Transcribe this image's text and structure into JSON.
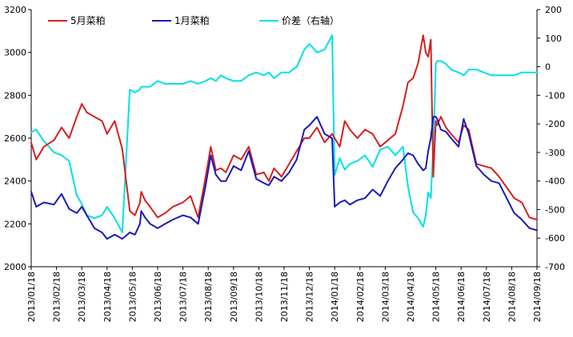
{
  "chart_data": {
    "type": "line",
    "legend": [
      "5月菜粕",
      "1月菜粕",
      "价差（右轴）"
    ],
    "legend_position": "top",
    "x_tick_labels": [
      "2013/01/18",
      "2013/02/18",
      "2013/03/18",
      "2013/04/18",
      "2013/05/18",
      "2013/06/18",
      "2013/07/18",
      "2013/08/18",
      "2013/09/18",
      "2013/10/18",
      "2013/11/18",
      "2013/12/18",
      "2014/01/18",
      "2014/02/18",
      "2014/03/18",
      "2014/04/18",
      "2014/05/18",
      "2014/06/18",
      "2014/07/18",
      "2014/08/18",
      "2014/09/18"
    ],
    "y_left": {
      "range": [
        2000,
        3200
      ],
      "ticks": [
        "2000",
        "2200",
        "2400",
        "2600",
        "2800",
        "3000",
        "3200"
      ]
    },
    "y_right": {
      "range": [
        -700,
        200
      ],
      "ticks": [
        "-700",
        "-600",
        "-500",
        "-400",
        "-300",
        "-200",
        "-100",
        "0",
        "100",
        "200"
      ]
    },
    "series": [
      {
        "name": "5月菜粕",
        "axis": "left",
        "color": "#d42020",
        "x": [
          0,
          0.2,
          0.5,
          0.9,
          1.2,
          1.5,
          1.8,
          2.0,
          2.2,
          2.5,
          2.8,
          3.0,
          3.3,
          3.6,
          3.9,
          4.1,
          4.3,
          4.35,
          4.5,
          4.7,
          5.0,
          5.3,
          5.6,
          6.0,
          6.3,
          6.6,
          6.9,
          7.1,
          7.3,
          7.5,
          7.7,
          8.0,
          8.3,
          8.6,
          8.9,
          9.2,
          9.4,
          9.6,
          9.9,
          10.2,
          10.5,
          10.8,
          11.0,
          11.3,
          11.6,
          11.9,
          12.0,
          12.2,
          12.4,
          12.6,
          12.9,
          13.2,
          13.5,
          13.8,
          14.1,
          14.4,
          14.7,
          14.9,
          15.1,
          15.3,
          15.5,
          15.6,
          15.7,
          15.8,
          15.9,
          16.0,
          16.05,
          16.2,
          16.4,
          16.6,
          16.9,
          17.1,
          17.3,
          17.6,
          17.9,
          18.2,
          18.5,
          18.8,
          19.1,
          19.4,
          19.7,
          20.0
        ],
        "values": [
          2580,
          2500,
          2560,
          2590,
          2650,
          2600,
          2700,
          2760,
          2720,
          2700,
          2680,
          2620,
          2680,
          2550,
          2260,
          2240,
          2300,
          2350,
          2310,
          2280,
          2230,
          2250,
          2280,
          2300,
          2330,
          2230,
          2420,
          2560,
          2450,
          2460,
          2440,
          2520,
          2500,
          2560,
          2430,
          2440,
          2400,
          2460,
          2420,
          2480,
          2540,
          2600,
          2600,
          2650,
          2580,
          2620,
          2600,
          2560,
          2680,
          2640,
          2600,
          2640,
          2620,
          2560,
          2590,
          2620,
          2750,
          2860,
          2880,
          2950,
          3080,
          3000,
          2980,
          3060,
          2420,
          2680,
          2660,
          2700,
          2650,
          2620,
          2580,
          2660,
          2640,
          2480,
          2470,
          2460,
          2420,
          2370,
          2320,
          2300,
          2230,
          2220
        ]
      },
      {
        "name": "1月菜粕",
        "axis": "left",
        "color": "#1a1ab8",
        "x": [
          0,
          0.2,
          0.5,
          0.9,
          1.2,
          1.5,
          1.8,
          2.0,
          2.2,
          2.5,
          2.8,
          3.0,
          3.3,
          3.6,
          3.9,
          4.1,
          4.3,
          4.35,
          4.5,
          4.7,
          5.0,
          5.3,
          5.6,
          6.0,
          6.3,
          6.6,
          6.9,
          7.1,
          7.3,
          7.5,
          7.7,
          8.0,
          8.3,
          8.6,
          8.9,
          9.2,
          9.4,
          9.6,
          9.9,
          10.2,
          10.5,
          10.8,
          11.0,
          11.3,
          11.6,
          11.9,
          12.0,
          12.2,
          12.4,
          12.6,
          12.9,
          13.2,
          13.5,
          13.8,
          14.1,
          14.4,
          14.7,
          14.9,
          15.1,
          15.3,
          15.5,
          15.6,
          15.7,
          15.8,
          15.9,
          16.0,
          16.05,
          16.2,
          16.4,
          16.6,
          16.9,
          17.1,
          17.3,
          17.6,
          17.9,
          18.2,
          18.5,
          18.8,
          19.1,
          19.4,
          19.7,
          20.0
        ],
        "values": [
          2350,
          2280,
          2300,
          2290,
          2340,
          2270,
          2250,
          2280,
          2240,
          2180,
          2160,
          2130,
          2150,
          2130,
          2160,
          2150,
          2200,
          2260,
          2230,
          2200,
          2180,
          2200,
          2220,
          2240,
          2230,
          2200,
          2380,
          2520,
          2430,
          2400,
          2400,
          2470,
          2450,
          2540,
          2410,
          2390,
          2380,
          2420,
          2400,
          2440,
          2500,
          2640,
          2660,
          2700,
          2620,
          2600,
          2280,
          2300,
          2310,
          2290,
          2310,
          2320,
          2360,
          2330,
          2400,
          2460,
          2500,
          2530,
          2520,
          2480,
          2450,
          2460,
          2540,
          2600,
          2700,
          2700,
          2690,
          2640,
          2630,
          2600,
          2560,
          2690,
          2620,
          2470,
          2430,
          2400,
          2390,
          2320,
          2250,
          2220,
          2180,
          2170
        ]
      },
      {
        "name": "价差（右轴）",
        "axis": "right",
        "color": "#00e0e8",
        "x": [
          0,
          0.2,
          0.5,
          0.9,
          1.2,
          1.5,
          1.8,
          2.0,
          2.2,
          2.5,
          2.8,
          3.0,
          3.3,
          3.6,
          3.9,
          4.1,
          4.3,
          4.35,
          4.5,
          4.7,
          5.0,
          5.3,
          5.6,
          6.0,
          6.3,
          6.6,
          6.9,
          7.1,
          7.3,
          7.5,
          7.7,
          8.0,
          8.3,
          8.6,
          8.9,
          9.2,
          9.4,
          9.6,
          9.9,
          10.2,
          10.5,
          10.8,
          11.0,
          11.3,
          11.6,
          11.9,
          12.0,
          12.2,
          12.4,
          12.6,
          12.9,
          13.2,
          13.5,
          13.8,
          14.1,
          14.4,
          14.7,
          14.9,
          15.1,
          15.3,
          15.5,
          15.6,
          15.7,
          15.8,
          15.9,
          16.0,
          16.05,
          16.2,
          16.4,
          16.6,
          16.9,
          17.1,
          17.3,
          17.6,
          17.9,
          18.2,
          18.5,
          18.8,
          19.1,
          19.4,
          19.7,
          20.0
        ],
        "values": [
          -230,
          -220,
          -260,
          -300,
          -310,
          -330,
          -450,
          -480,
          -520,
          -530,
          -520,
          -490,
          -530,
          -580,
          -80,
          -90,
          -80,
          -70,
          -70,
          -70,
          -50,
          -60,
          -60,
          -60,
          -50,
          -60,
          -50,
          -40,
          -50,
          -30,
          -40,
          -50,
          -50,
          -30,
          -20,
          -30,
          -20,
          -40,
          -20,
          -20,
          0,
          60,
          80,
          50,
          60,
          110,
          -380,
          -320,
          -360,
          -340,
          -330,
          -310,
          -350,
          -290,
          -280,
          -310,
          -280,
          -420,
          -510,
          -530,
          -560,
          -520,
          -440,
          -460,
          -280,
          10,
          20,
          20,
          10,
          -10,
          -20,
          -30,
          -10,
          -10,
          -20,
          -30,
          -30,
          -30,
          -30,
          -20,
          -20,
          -20
        ]
      }
    ]
  }
}
